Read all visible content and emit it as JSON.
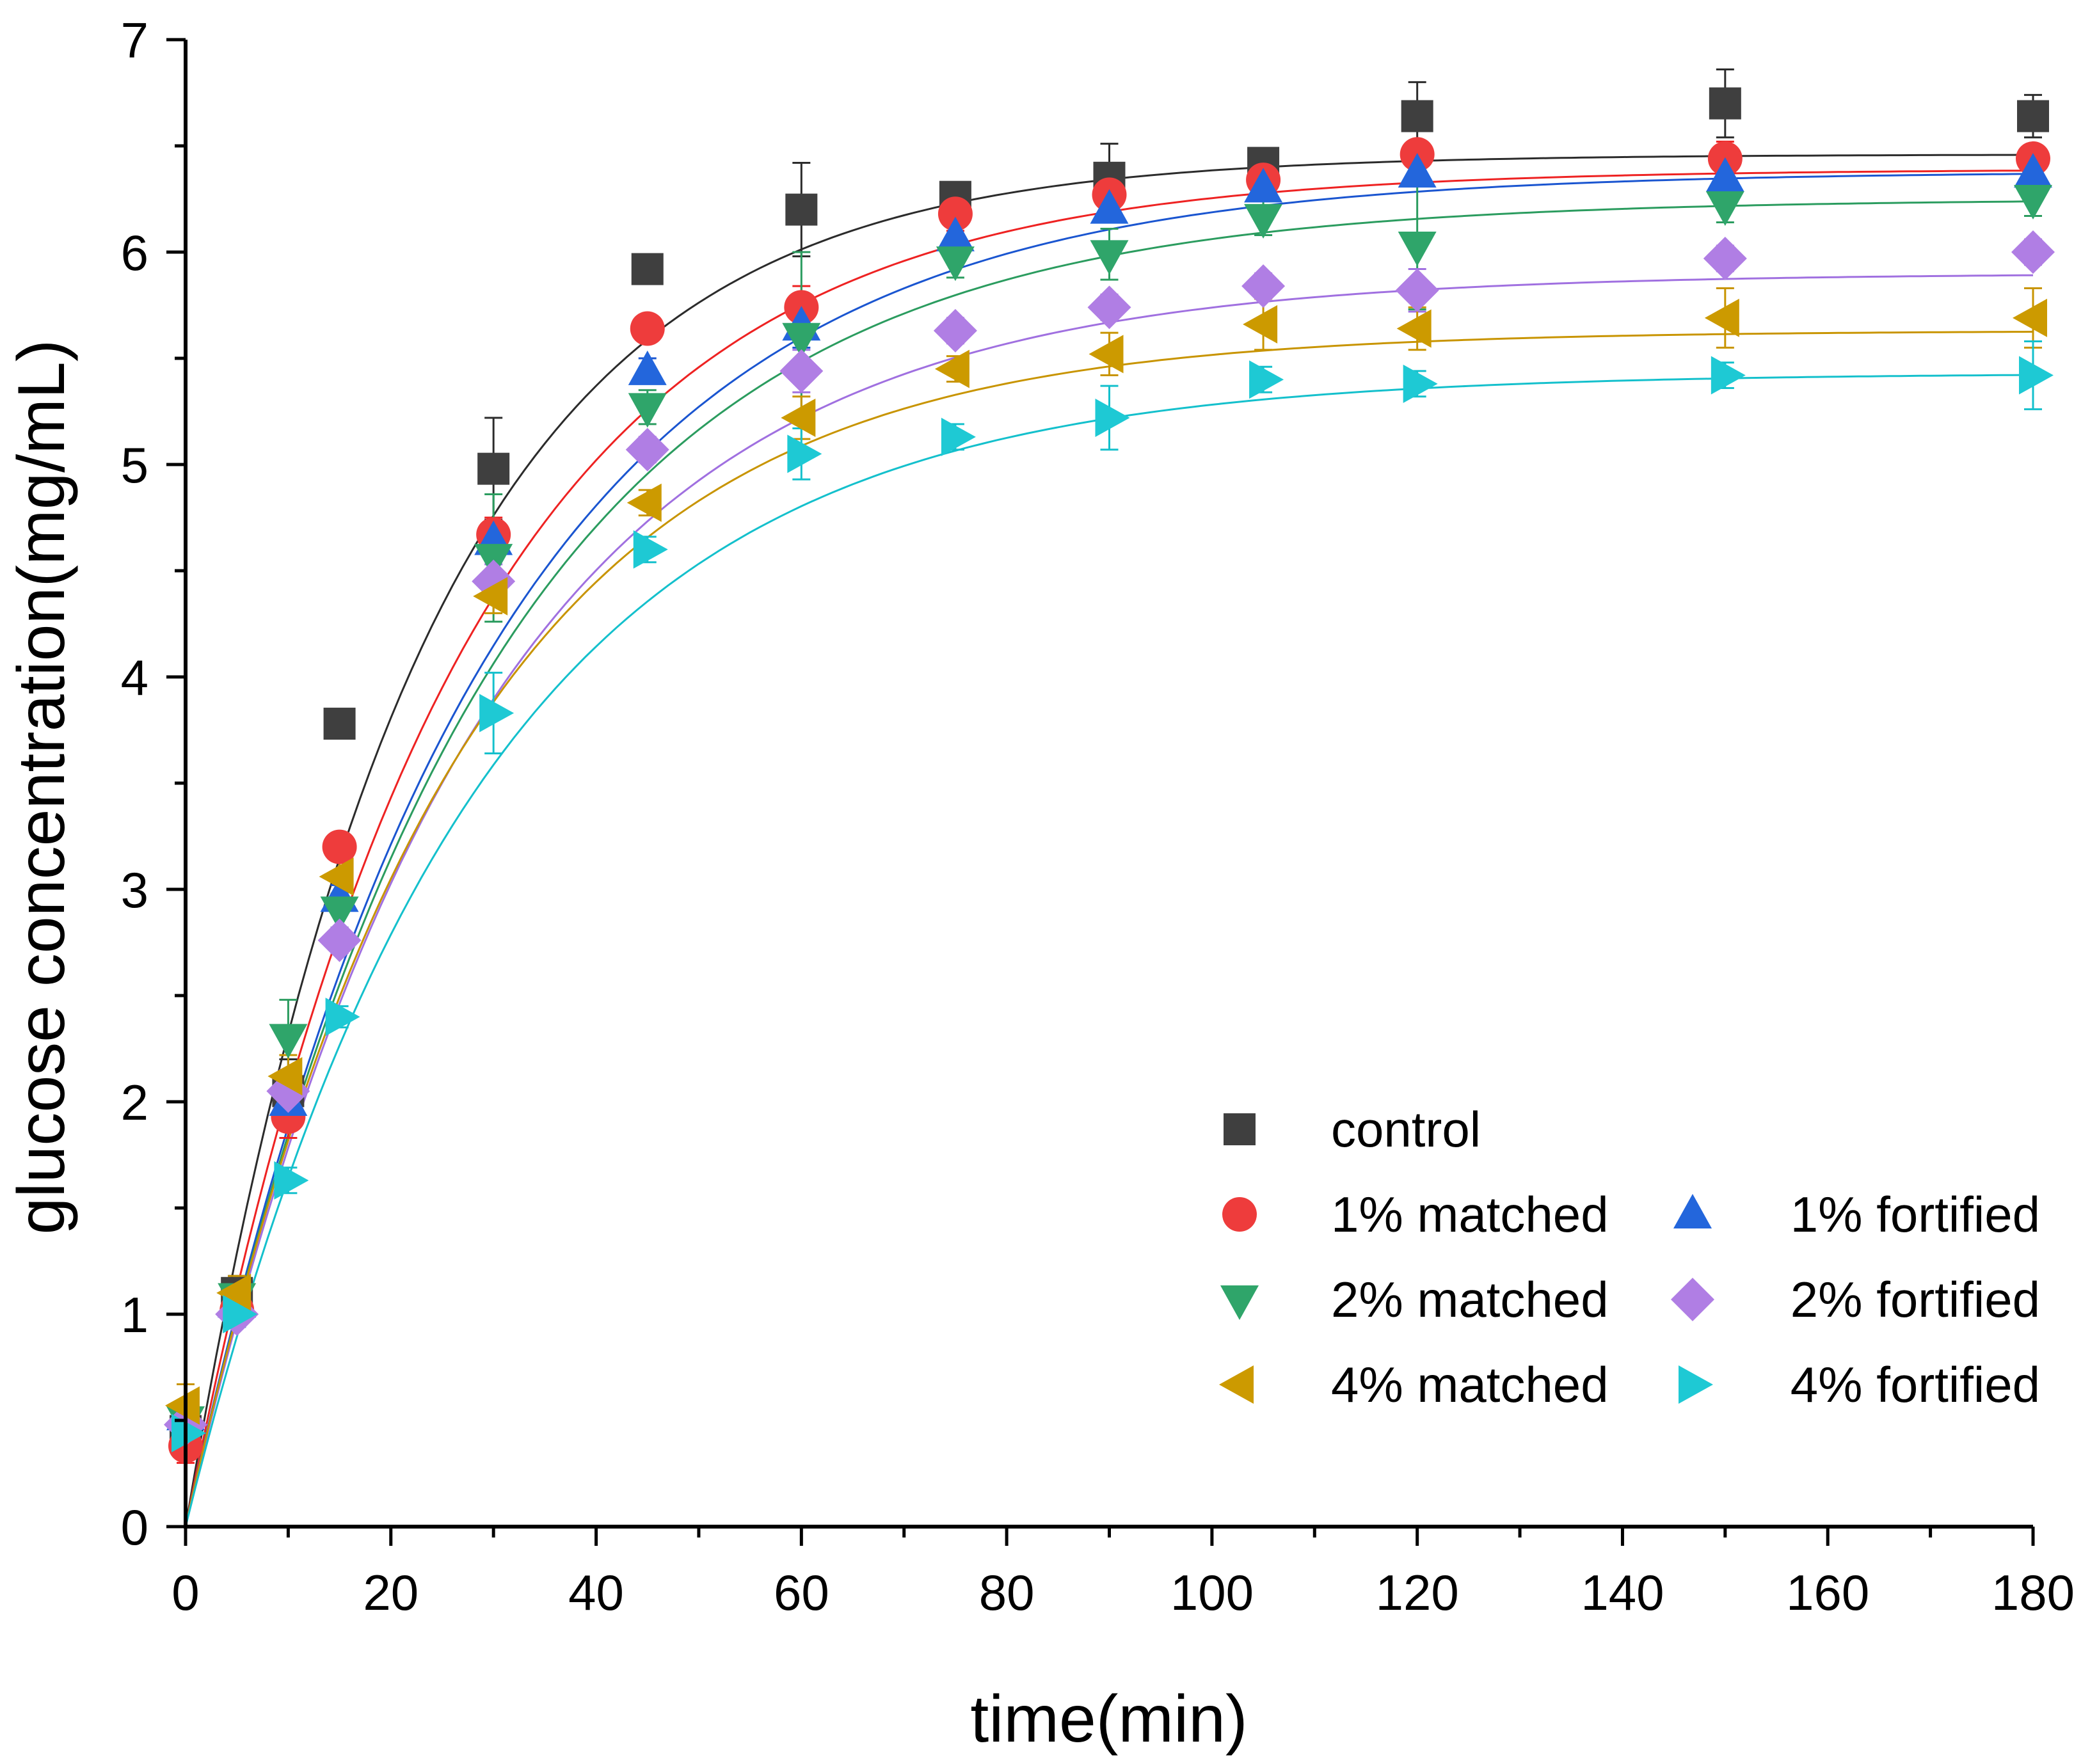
{
  "chart_data": {
    "type": "scatter",
    "title": "",
    "xlabel": "time(min)",
    "ylabel": "glucose concentration(mg/mL)",
    "xlim": [
      0,
      180
    ],
    "ylim": [
      0,
      7
    ],
    "xticks": [
      "0",
      "20",
      "40",
      "60",
      "80",
      "100",
      "120",
      "140",
      "160",
      "180"
    ],
    "yticks": [
      "0",
      "1",
      "2",
      "3",
      "4",
      "5",
      "6",
      "7"
    ],
    "grid": false,
    "legend_position": "bottom-right",
    "x": [
      0,
      5,
      10,
      15,
      30,
      45,
      60,
      75,
      90,
      105,
      120,
      150,
      180
    ],
    "series": [
      {
        "name": "control",
        "color": "#3f3f3f",
        "line_color": "#2b2b2b",
        "marker": "square",
        "values": [
          0.45,
          1.1,
          2.05,
          3.78,
          4.98,
          5.92,
          6.2,
          6.26,
          6.35,
          6.42,
          6.64,
          6.7,
          6.64
        ],
        "errors": [
          0.1,
          0.08,
          0.15,
          0.05,
          0.24,
          0.05,
          0.22,
          0.05,
          0.16,
          0.04,
          0.16,
          0.16,
          0.1
        ],
        "fit": {
          "a": 6.46,
          "k": 0.0445
        }
      },
      {
        "name": "1% matched",
        "color": "#ee3c3c",
        "line_color": "#ee2222",
        "marker": "circle",
        "values": [
          0.38,
          1.02,
          1.93,
          3.2,
          4.67,
          5.64,
          5.74,
          6.18,
          6.27,
          6.34,
          6.46,
          6.44,
          6.44
        ],
        "errors": [
          0.08,
          0.08,
          0.1,
          0.06,
          0.08,
          0.05,
          0.1,
          0.08,
          0.1,
          0.05,
          0.05,
          0.08,
          0.06
        ],
        "fit": {
          "a": 6.39,
          "k": 0.0385
        }
      },
      {
        "name": "1% fortified",
        "color": "#2366dc",
        "line_color": "#1a55d0",
        "marker": "triangle-up",
        "values": [
          0.52,
          1.05,
          2.0,
          2.96,
          4.64,
          5.44,
          5.65,
          6.07,
          6.2,
          6.3,
          6.37,
          6.35,
          6.37
        ],
        "errors": [
          0.06,
          0.06,
          0.08,
          0.06,
          0.08,
          0.06,
          0.1,
          0.08,
          0.06,
          0.05,
          0.06,
          0.06,
          0.06
        ],
        "fit": {
          "a": 6.38,
          "k": 0.035
        }
      },
      {
        "name": "2% matched",
        "color": "#2fa56a",
        "line_color": "#2b9c5f",
        "marker": "triangle-down",
        "values": [
          0.5,
          1.08,
          2.3,
          2.9,
          4.56,
          5.27,
          5.6,
          5.96,
          5.99,
          6.16,
          6.03,
          6.22,
          6.25
        ],
        "errors": [
          0.08,
          0.08,
          0.18,
          0.08,
          0.3,
          0.08,
          0.4,
          0.08,
          0.12,
          0.08,
          0.3,
          0.08,
          0.08
        ],
        "fit": {
          "a": 6.25,
          "k": 0.035
        }
      },
      {
        "name": "2% fortified",
        "color": "#b07ee4",
        "line_color": "#a070e0",
        "marker": "diamond",
        "values": [
          0.48,
          1.0,
          2.05,
          2.76,
          4.45,
          5.07,
          5.44,
          5.63,
          5.74,
          5.84,
          5.82,
          5.97,
          6.0
        ],
        "errors": [
          0.06,
          0.06,
          0.1,
          0.06,
          0.08,
          0.06,
          0.1,
          0.06,
          0.06,
          0.06,
          0.1,
          0.06,
          0.06
        ],
        "fit": {
          "a": 5.9,
          "k": 0.036
        }
      },
      {
        "name": "4% matched",
        "color": "#cc9a00",
        "line_color": "#c89400",
        "marker": "triangle-left",
        "values": [
          0.57,
          1.1,
          2.12,
          3.06,
          4.38,
          4.82,
          5.22,
          5.45,
          5.52,
          5.66,
          5.64,
          5.69,
          5.69
        ],
        "errors": [
          0.1,
          0.08,
          0.1,
          0.08,
          0.08,
          0.06,
          0.1,
          0.06,
          0.1,
          0.12,
          0.1,
          0.14,
          0.14
        ],
        "fit": {
          "a": 5.63,
          "k": 0.039
        }
      },
      {
        "name": "4% fortified",
        "color": "#1ec9d4",
        "line_color": "#14c0cc",
        "marker": "triangle-right",
        "values": [
          0.44,
          1.0,
          1.63,
          2.4,
          3.83,
          4.6,
          5.05,
          5.13,
          5.22,
          5.4,
          5.38,
          5.42,
          5.42
        ],
        "errors": [
          0.06,
          0.06,
          0.06,
          0.05,
          0.19,
          0.06,
          0.12,
          0.06,
          0.15,
          0.06,
          0.06,
          0.06,
          0.16
        ],
        "fit": {
          "a": 5.43,
          "k": 0.036
        }
      }
    ]
  }
}
